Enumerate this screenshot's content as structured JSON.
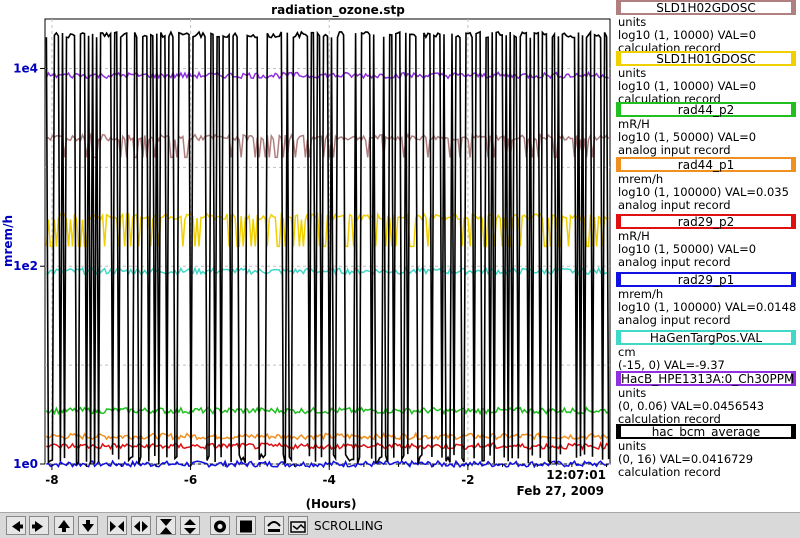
{
  "plot": {
    "title": "radiation_ozone.stp",
    "ylabel": "mrem/h",
    "xlabel": "(Hours)",
    "x_ticks": [
      "-8",
      "-6",
      "-4",
      "-2"
    ],
    "y_ticks": [
      "1e4",
      "1e2",
      "1e0"
    ],
    "time_label": "12:07:01",
    "date_label": "Feb 27, 2009"
  },
  "legend": [
    {
      "name": "SLD1H02GDOSC",
      "unit": "units",
      "range": "log10 (1, 10000) VAL=0",
      "type": "calculation record",
      "color": "#b08080"
    },
    {
      "name": "SLD1H01GDOSC",
      "unit": "units",
      "range": "log10 (1, 10000) VAL=0",
      "type": "calculation record",
      "color": "#f0d000"
    },
    {
      "name": "rad44_p2",
      "unit": "mR/H",
      "range": "log10 (1, 50000) VAL=0",
      "type": "analog input record",
      "color": "#20c020"
    },
    {
      "name": "rad44_p1",
      "unit": "mrem/h",
      "range": "log10 (1, 100000) VAL=0.035",
      "type": "analog input record",
      "color": "#f09020"
    },
    {
      "name": "rad29_p2",
      "unit": "mR/H",
      "range": "log10 (1, 50000) VAL=0",
      "type": "analog input record",
      "color": "#e01010"
    },
    {
      "name": "rad29_p1",
      "unit": "mrem/h",
      "range": "log10 (1, 100000) VAL=0.0148",
      "type": "analog input record",
      "color": "#1010e0"
    },
    {
      "name": "HaGenTargPos.VAL",
      "unit": "cm",
      "range": "(-15, 0) VAL=-9.37",
      "type": "",
      "color": "#40d8c8"
    },
    {
      "name": "HacB_HPE1313A:0_Ch30PPM",
      "unit": "units",
      "range": "(0, 0.06) VAL=0.0456543",
      "type": "calculation record",
      "color": "#9030e0"
    },
    {
      "name": "hac_bcm_average",
      "unit": "units",
      "range": "(0, 16) VAL=0.0416729",
      "type": "calculation record",
      "color": "#000000"
    }
  ],
  "toolbar": {
    "status": "SCROLLING",
    "buttons": [
      "arrow-left-icon",
      "arrow-right-icon",
      "arrow-up-icon",
      "arrow-down-icon",
      "zoom-in-horizontal-icon",
      "zoom-out-horizontal-icon",
      "zoom-in-vertical-icon",
      "zoom-out-vertical-icon",
      "autoscale-icon",
      "stop-icon",
      "config-icon",
      "scroll-mode-icon"
    ]
  },
  "chart_data": {
    "type": "line",
    "title": "radiation_ozone.stp",
    "xlabel": "(Hours)",
    "ylabel": "mrem/h",
    "xlim": [
      -8.1,
      0.05
    ],
    "ylim_log10": [
      0,
      4.5
    ],
    "y_scale": "log",
    "grid": true,
    "series": [
      {
        "name": "hac_bcm_average",
        "level_log10": 4.34,
        "low_log10": 0.0,
        "behavior": "toggling"
      },
      {
        "name": "HacB_HPE1313A:0_Ch30PPM",
        "level_log10": 3.93
      },
      {
        "name": "SLD1H02GDOSC",
        "level_log10": 3.3,
        "low_log10": 3.1
      },
      {
        "name": "SLD1H01GDOSC",
        "level_log10": 2.5,
        "low_log10": 2.2
      },
      {
        "name": "HaGenTargPos.VAL",
        "level_log10": 1.95
      },
      {
        "name": "rad44_p2",
        "level_log10": 0.54
      },
      {
        "name": "rad44_p1",
        "level_log10": 0.28
      },
      {
        "name": "rad29_p2",
        "level_log10": 0.18
      },
      {
        "name": "rad29_p1",
        "level_log10": 0.0
      }
    ]
  }
}
